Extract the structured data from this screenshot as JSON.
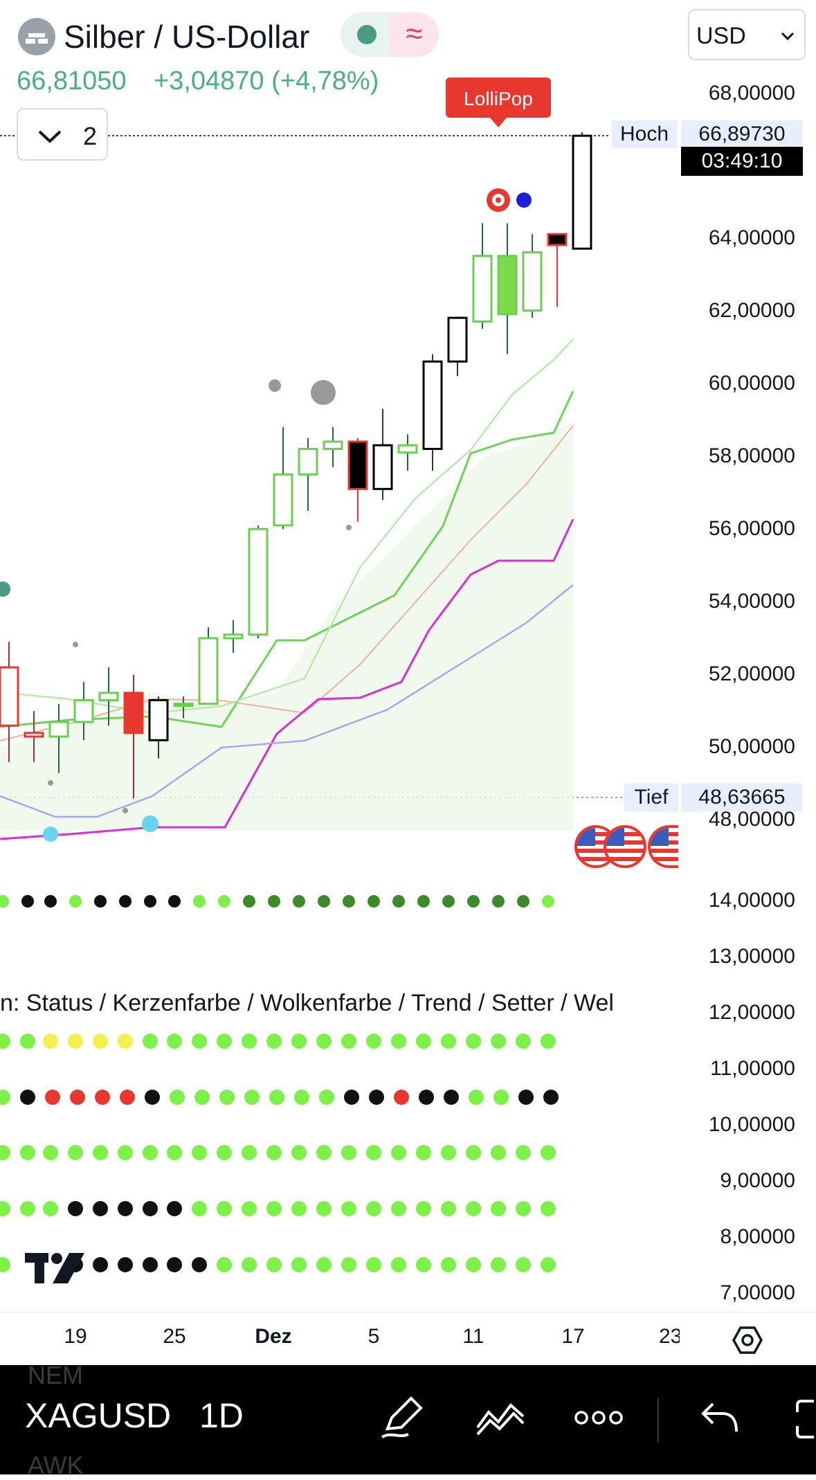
{
  "header": {
    "symbol_title": "Silber / US-Dollar",
    "price": "66,81050",
    "change": "+3,04870 (+4,78%)",
    "currency": "USD",
    "indicator_count": "2",
    "colors": {
      "up": "#4caf82",
      "badge_red": "#e8372f"
    }
  },
  "markers": {
    "lollipop": "LolliPop",
    "high_label": "Hoch",
    "high_value": "66,89730",
    "countdown": "03:49:10",
    "low_label": "Tief",
    "low_value": "48,63665"
  },
  "price_axis": [
    "68,00000",
    "64,00000",
    "62,00000",
    "60,00000",
    "58,00000",
    "56,00000",
    "54,00000",
    "52,00000",
    "50,00000",
    "48,00000"
  ],
  "indicator_axis": [
    "14,00000",
    "13,00000",
    "12,00000",
    "11,00000",
    "10,00000",
    "9,00000",
    "8,00000",
    "7,00000"
  ],
  "indicator_title": "n: Status / Kerzenfarbe / Wolkenfarbe / Trend / Setter / Wel",
  "date_axis": [
    "19",
    "25",
    "Dez",
    "5",
    "11",
    "17",
    "23"
  ],
  "bottom_bar": {
    "symbol": "XAGUSD",
    "timeframe": "1D",
    "ghost_top": "NEM",
    "ghost_bottom": "AWK"
  },
  "chart_data": {
    "type": "candlestick",
    "ylim": [
      47.5,
      69.0
    ],
    "candles": [
      {
        "o": 52.2,
        "h": 52.9,
        "l": 49.6,
        "c": 50.6
      },
      {
        "o": 50.4,
        "h": 51.0,
        "l": 49.6,
        "c": 50.3
      },
      {
        "o": 50.3,
        "h": 51.2,
        "l": 49.3,
        "c": 50.7
      },
      {
        "o": 50.7,
        "h": 51.8,
        "l": 50.2,
        "c": 51.3
      },
      {
        "o": 51.3,
        "h": 52.2,
        "l": 50.6,
        "c": 51.5
      },
      {
        "o": 51.5,
        "h": 52.0,
        "l": 48.6,
        "c": 50.4
      },
      {
        "o": 50.2,
        "h": 51.4,
        "l": 49.7,
        "c": 51.3
      },
      {
        "o": 51.2,
        "h": 51.4,
        "l": 50.8,
        "c": 51.2
      },
      {
        "o": 51.2,
        "h": 53.3,
        "l": 51.2,
        "c": 53.0
      },
      {
        "o": 53.0,
        "h": 53.5,
        "l": 52.6,
        "c": 53.1
      },
      {
        "o": 53.1,
        "h": 56.1,
        "l": 53.0,
        "c": 56.0
      },
      {
        "o": 56.1,
        "h": 58.8,
        "l": 56.0,
        "c": 57.5
      },
      {
        "o": 57.5,
        "h": 58.5,
        "l": 56.5,
        "c": 58.2
      },
      {
        "o": 58.2,
        "h": 58.8,
        "l": 57.7,
        "c": 58.4
      },
      {
        "o": 58.4,
        "h": 58.5,
        "l": 56.2,
        "c": 57.1
      },
      {
        "o": 57.1,
        "h": 59.3,
        "l": 56.8,
        "c": 58.3
      },
      {
        "o": 58.1,
        "h": 58.6,
        "l": 57.6,
        "c": 58.3
      },
      {
        "o": 58.2,
        "h": 60.8,
        "l": 57.6,
        "c": 60.6
      },
      {
        "o": 60.6,
        "h": 61.8,
        "l": 60.2,
        "c": 61.8
      },
      {
        "o": 61.7,
        "h": 64.4,
        "l": 61.5,
        "c": 63.5
      },
      {
        "o": 61.9,
        "h": 64.4,
        "l": 60.8,
        "c": 63.5
      },
      {
        "o": 62.0,
        "h": 64.1,
        "l": 61.8,
        "c": 63.6
      },
      {
        "o": 63.8,
        "h": 64.1,
        "l": 62.1,
        "c": 64.1
      },
      {
        "o": 63.7,
        "h": 66.9,
        "l": 63.7,
        "c": 66.8
      }
    ]
  }
}
